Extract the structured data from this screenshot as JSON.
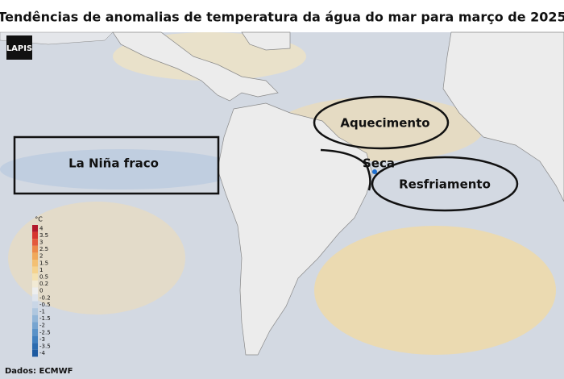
{
  "header": {
    "title": "Tendências de anomalias de temperatura da água do mar para março de 2025"
  },
  "logo": {
    "text": "LAPIS"
  },
  "annotations": {
    "warming": "Aquecimento",
    "la_nina": "La Niña fraco",
    "drought": "Seca",
    "cooling": "Resfriamento"
  },
  "legend": {
    "unit": "°C",
    "items": [
      {
        "value": 4,
        "color": "#b2182b"
      },
      {
        "value": 3.5,
        "color": "#d6352f"
      },
      {
        "value": 3,
        "color": "#e35a3c"
      },
      {
        "value": 2.5,
        "color": "#ec8a4a"
      },
      {
        "value": 2,
        "color": "#f0a95c"
      },
      {
        "value": 1.5,
        "color": "#f3c073"
      },
      {
        "value": 1,
        "color": "#f5d38f"
      },
      {
        "value": 0.5,
        "color": "#f4e2b2"
      },
      {
        "value": 0.2,
        "color": "#f2ead5"
      },
      {
        "value": 0,
        "color": "#eeeeee"
      },
      {
        "value": -0.2,
        "color": "#dfe4ec"
      },
      {
        "value": -0.5,
        "color": "#c9d6e6"
      },
      {
        "value": -1,
        "color": "#afc7df"
      },
      {
        "value": -1.5,
        "color": "#92b6d8"
      },
      {
        "value": -2,
        "color": "#76a4d0"
      },
      {
        "value": -2.5,
        "color": "#5a92c8"
      },
      {
        "value": -3,
        "color": "#4180bf"
      },
      {
        "value": -3.5,
        "color": "#2c6cb0"
      },
      {
        "value": -4,
        "color": "#1d5aa0"
      }
    ]
  },
  "footer": {
    "source": "Dados: ECMWF"
  }
}
